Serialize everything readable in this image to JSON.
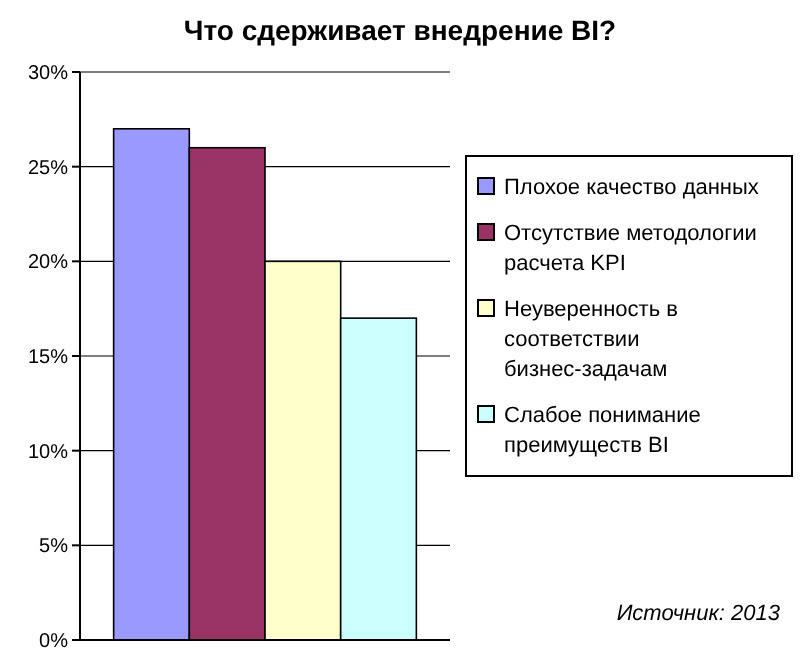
{
  "chart_data": {
    "type": "bar",
    "title": "Что сдерживает внедрение BI?",
    "categories": [
      null
    ],
    "series": [
      {
        "name": "Плохое качество данных",
        "color": "#9999ff",
        "values": [
          27
        ]
      },
      {
        "name": "Отсутствие методологии расчета KPI",
        "color": "#993366",
        "values": [
          26
        ]
      },
      {
        "name": "Неуверенность в соответствии бизнес-задачам",
        "color": "#ffffcc",
        "values": [
          20
        ]
      },
      {
        "name": "Слабое понимание преимуществ BI",
        "color": "#ccffff",
        "values": [
          17
        ]
      }
    ],
    "ylim": [
      0,
      30
    ],
    "yticks": [
      {
        "value": 0,
        "label": "0%"
      },
      {
        "value": 5,
        "label": "5%"
      },
      {
        "value": 10,
        "label": "10%"
      },
      {
        "value": 15,
        "label": "15%"
      },
      {
        "value": 20,
        "label": "20%"
      },
      {
        "value": 25,
        "label": "25%"
      },
      {
        "value": 30,
        "label": "30%"
      }
    ],
    "grid": "y",
    "legend": "right",
    "annotations": [
      "Источник: 2013"
    ]
  }
}
